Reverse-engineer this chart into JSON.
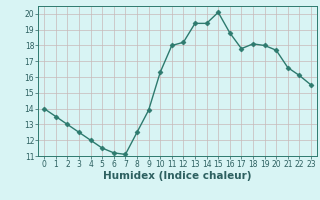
{
  "x": [
    0,
    1,
    2,
    3,
    4,
    5,
    6,
    7,
    8,
    9,
    10,
    11,
    12,
    13,
    14,
    15,
    16,
    17,
    18,
    19,
    20,
    21,
    22,
    23
  ],
  "y": [
    14.0,
    13.5,
    13.0,
    12.5,
    12.0,
    11.5,
    11.2,
    11.1,
    12.5,
    13.9,
    16.3,
    18.0,
    18.2,
    19.4,
    19.4,
    20.1,
    18.8,
    17.8,
    18.1,
    18.0,
    17.7,
    16.6,
    16.1,
    15.5
  ],
  "line_color": "#2d7a6e",
  "marker": "D",
  "marker_size": 2.5,
  "line_width": 1.0,
  "bg_color": "#d8f4f4",
  "grid_color": "#c8b8b8",
  "xlabel": "Humidex (Indice chaleur)",
  "ylim": [
    11,
    20.5
  ],
  "xlim": [
    -0.5,
    23.5
  ],
  "yticks": [
    11,
    12,
    13,
    14,
    15,
    16,
    17,
    18,
    19,
    20
  ],
  "xticks": [
    0,
    1,
    2,
    3,
    4,
    5,
    6,
    7,
    8,
    9,
    10,
    11,
    12,
    13,
    14,
    15,
    16,
    17,
    18,
    19,
    20,
    21,
    22,
    23
  ],
  "tick_label_size": 5.5,
  "xlabel_size": 7.5,
  "text_color": "#2d6060",
  "axis_color": "#2d7a6e"
}
